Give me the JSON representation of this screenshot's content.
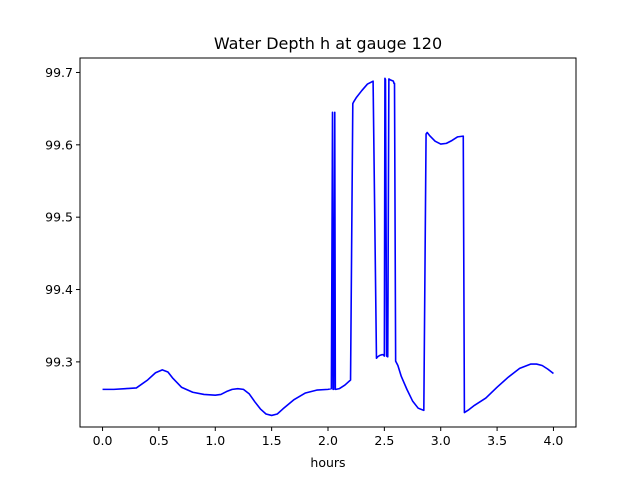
{
  "chart_data": {
    "type": "line",
    "title": "Water Depth h at gauge 120",
    "xlabel": "hours",
    "ylabel": "",
    "xlim": [
      -0.2,
      4.2
    ],
    "ylim": [
      99.21,
      99.72
    ],
    "x_ticks": [
      0.0,
      0.5,
      1.0,
      1.5,
      2.0,
      2.5,
      3.0,
      3.5,
      4.0
    ],
    "x_tick_labels": [
      "0.0",
      "0.5",
      "1.0",
      "1.5",
      "2.0",
      "2.5",
      "3.0",
      "3.5",
      "4.0"
    ],
    "y_ticks": [
      99.3,
      99.4,
      99.5,
      99.6,
      99.7
    ],
    "y_tick_labels": [
      "99.3",
      "99.4",
      "99.5",
      "99.6",
      "99.7"
    ],
    "grid": false,
    "series": [
      {
        "color": "#0000ff",
        "x": [
          0.0,
          0.1,
          0.2,
          0.3,
          0.4,
          0.47,
          0.53,
          0.58,
          0.62,
          0.7,
          0.8,
          0.9,
          1.0,
          1.05,
          1.1,
          1.15,
          1.2,
          1.25,
          1.3,
          1.35,
          1.4,
          1.45,
          1.5,
          1.55,
          1.6,
          1.7,
          1.8,
          1.9,
          2.0,
          2.03,
          2.04,
          2.045,
          2.05,
          2.06,
          2.065,
          2.07,
          2.1,
          2.15,
          2.2,
          2.22,
          2.23,
          2.25,
          2.3,
          2.35,
          2.4,
          2.43,
          2.44,
          2.46,
          2.48,
          2.49,
          2.5,
          2.505,
          2.51,
          2.52,
          2.53,
          2.54,
          2.55,
          2.58,
          2.585,
          2.59,
          2.6,
          2.62,
          2.65,
          2.7,
          2.75,
          2.8,
          2.85,
          2.87,
          2.88,
          2.9,
          2.95,
          3.0,
          3.05,
          3.1,
          3.15,
          3.2,
          3.21,
          3.25,
          3.3,
          3.35,
          3.4,
          3.5,
          3.6,
          3.7,
          3.8,
          3.85,
          3.9,
          3.95,
          4.0
        ],
        "y": [
          99.262,
          99.262,
          99.263,
          99.264,
          99.275,
          99.285,
          99.289,
          99.286,
          99.278,
          99.265,
          99.258,
          99.255,
          99.254,
          99.255,
          99.259,
          99.262,
          99.263,
          99.262,
          99.256,
          99.245,
          99.235,
          99.228,
          99.226,
          99.228,
          99.235,
          99.248,
          99.257,
          99.261,
          99.262,
          99.263,
          99.645,
          99.262,
          99.262,
          99.645,
          99.262,
          99.262,
          99.263,
          99.268,
          99.275,
          99.657,
          99.66,
          99.665,
          99.675,
          99.684,
          99.688,
          99.305,
          99.307,
          99.309,
          99.31,
          99.31,
          99.308,
          99.692,
          99.69,
          99.308,
          99.307,
          99.691,
          99.69,
          99.688,
          99.685,
          99.685,
          99.301,
          99.295,
          99.28,
          99.262,
          99.246,
          99.236,
          99.233,
          99.615,
          99.617,
          99.613,
          99.605,
          99.601,
          99.602,
          99.606,
          99.611,
          99.612,
          99.23,
          99.234,
          99.24,
          99.245,
          99.25,
          99.265,
          99.279,
          99.291,
          99.297,
          99.297,
          99.295,
          99.29,
          99.284
        ]
      }
    ]
  }
}
